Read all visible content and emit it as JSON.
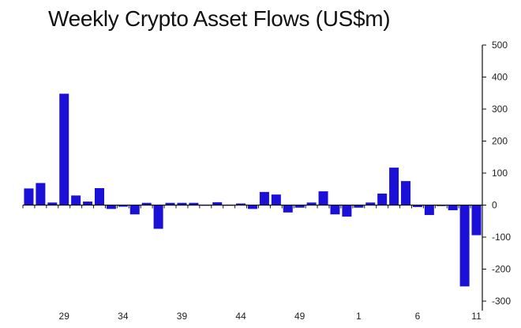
{
  "chart_data": {
    "type": "bar",
    "title": "Weekly Crypto Asset Flows (US$m)",
    "xlabel": "",
    "ylabel": "",
    "categories": [
      "26",
      "27",
      "28",
      "29",
      "30",
      "31",
      "32",
      "33",
      "34",
      "35",
      "36",
      "37",
      "38",
      "39",
      "40",
      "41",
      "42",
      "43",
      "44",
      "45",
      "46",
      "47",
      "48",
      "49",
      "50",
      "51",
      "52",
      "53",
      "1",
      "2",
      "3",
      "4",
      "5",
      "6",
      "7",
      "8",
      "9",
      "10",
      "11"
    ],
    "x_tick_labels": [
      "29",
      "34",
      "39",
      "44",
      "49",
      "1",
      "6",
      "11"
    ],
    "values": [
      52,
      69,
      8,
      348,
      30,
      11,
      53,
      -12,
      -5,
      -29,
      7,
      -74,
      7,
      7,
      7,
      -2,
      9,
      -1,
      5,
      -12,
      41,
      33,
      -23,
      -8,
      8,
      43,
      -29,
      -36,
      -8,
      8,
      36,
      117,
      75,
      -6,
      -31,
      -3,
      -16,
      -254,
      -94
    ],
    "ylim": [
      -300,
      500
    ],
    "y_ticks": [
      500,
      400,
      300,
      200,
      100,
      0,
      -100,
      -200,
      -300
    ],
    "y_axis_side": "right",
    "grid": false,
    "legend": "none",
    "bar_color": "#1a10d8"
  }
}
